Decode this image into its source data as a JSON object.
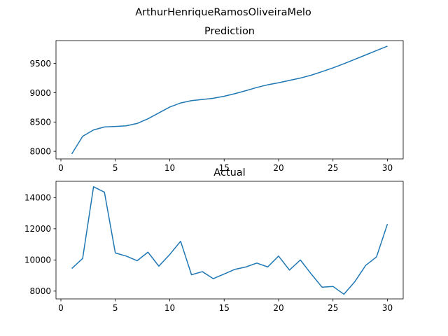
{
  "figure": {
    "suptitle": "ArthurHenriqueRamosOliveiraMelo"
  },
  "colors": {
    "line": "#1f77b4",
    "axes": "#000000",
    "background": "#ffffff"
  },
  "chart_data": [
    {
      "type": "line",
      "title": "Prediction",
      "xlabel": "",
      "ylabel": "",
      "grid": false,
      "xlim": [
        -0.45,
        31.45
      ],
      "ylim": [
        7870,
        9890
      ],
      "xticks": [
        0,
        5,
        10,
        15,
        20,
        25,
        30
      ],
      "yticks": [
        8000,
        8500,
        9000,
        9500
      ],
      "x": [
        1,
        2,
        3,
        4,
        5,
        6,
        7,
        8,
        9,
        10,
        11,
        12,
        13,
        14,
        15,
        16,
        17,
        18,
        19,
        20,
        21,
        22,
        23,
        24,
        25,
        26,
        27,
        28,
        29,
        30
      ],
      "series": [
        {
          "values": [
            7955,
            8255,
            8365,
            8415,
            8425,
            8435,
            8475,
            8555,
            8655,
            8755,
            8825,
            8865,
            8885,
            8905,
            8940,
            8985,
            9035,
            9090,
            9135,
            9170,
            9210,
            9250,
            9300,
            9360,
            9425,
            9495,
            9570,
            9645,
            9720,
            9795
          ]
        }
      ]
    },
    {
      "type": "line",
      "title": "Actual",
      "xlabel": "",
      "ylabel": "",
      "grid": false,
      "xlim": [
        -0.45,
        31.45
      ],
      "ylim": [
        7500,
        15050
      ],
      "xticks": [
        0,
        5,
        10,
        15,
        20,
        25,
        30
      ],
      "yticks": [
        8000,
        10000,
        12000,
        14000
      ],
      "x": [
        1,
        2,
        3,
        4,
        5,
        6,
        7,
        8,
        9,
        10,
        11,
        12,
        13,
        14,
        15,
        16,
        17,
        18,
        19,
        20,
        21,
        22,
        23,
        24,
        25,
        26,
        27,
        28,
        29,
        30
      ],
      "series": [
        {
          "values": [
            9450,
            10100,
            14700,
            14350,
            10450,
            10250,
            9950,
            10500,
            9600,
            10350,
            11200,
            9050,
            9250,
            8800,
            9100,
            9400,
            9550,
            9800,
            9550,
            10250,
            9350,
            10000,
            9100,
            8250,
            8300,
            7800,
            8600,
            9650,
            10200,
            12300
          ]
        }
      ]
    }
  ]
}
